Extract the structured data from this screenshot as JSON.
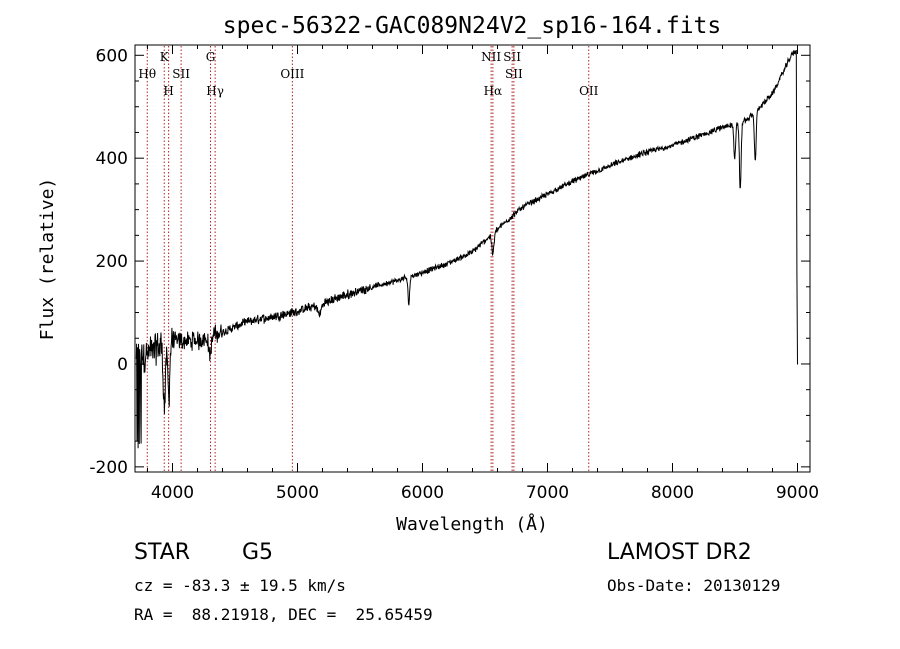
{
  "chart_data": {
    "type": "line",
    "title": "spec-56322-GAC089N24V2_sp16-164.fits",
    "xlabel": "Wavelength (Å)",
    "ylabel": "Flux (relative)",
    "xlim": [
      3700,
      9100
    ],
    "ylim": [
      -210,
      620
    ],
    "x_ticks": [
      4000,
      5000,
      6000,
      7000,
      8000,
      9000
    ],
    "y_ticks": [
      -200,
      0,
      200,
      400,
      600
    ],
    "line_color": "#000000",
    "marker_color": "#b22222",
    "grid": false,
    "continuum_anchors": [
      [
        3700,
        5
      ],
      [
        3800,
        20
      ],
      [
        3900,
        35
      ],
      [
        4000,
        45
      ],
      [
        4200,
        45
      ],
      [
        4400,
        62
      ],
      [
        4600,
        82
      ],
      [
        4800,
        92
      ],
      [
        5000,
        102
      ],
      [
        5200,
        118
      ],
      [
        5400,
        135
      ],
      [
        5600,
        150
      ],
      [
        5800,
        162
      ],
      [
        6000,
        178
      ],
      [
        6200,
        195
      ],
      [
        6400,
        218
      ],
      [
        6600,
        262
      ],
      [
        6800,
        305
      ],
      [
        7000,
        330
      ],
      [
        7200,
        355
      ],
      [
        7400,
        375
      ],
      [
        7600,
        395
      ],
      [
        7800,
        412
      ],
      [
        8000,
        425
      ],
      [
        8200,
        442
      ],
      [
        8400,
        460
      ],
      [
        8600,
        475
      ],
      [
        8800,
        525
      ],
      [
        8950,
        600
      ],
      [
        8990,
        610
      ]
    ],
    "absorption_features": [
      {
        "x": 3935,
        "depth": 120,
        "width": 12
      },
      {
        "x": 3970,
        "depth": 100,
        "width": 12
      },
      {
        "x": 4300,
        "depth": 35,
        "width": 15
      },
      {
        "x": 5175,
        "depth": 20,
        "width": 20
      },
      {
        "x": 5890,
        "depth": 50,
        "width": 10
      },
      {
        "x": 6563,
        "depth": 40,
        "width": 12
      },
      {
        "x": 8498,
        "depth": 70,
        "width": 10
      },
      {
        "x": 8542,
        "depth": 130,
        "width": 10
      },
      {
        "x": 8662,
        "depth": 95,
        "width": 10
      }
    ],
    "line_markers": [
      {
        "label": "Hθ",
        "x": 3798,
        "row": 2
      },
      {
        "label": "K",
        "x": 3934,
        "row": 1
      },
      {
        "label": "H",
        "x": 3969,
        "row": 3
      },
      {
        "label": "SII",
        "x": 4069,
        "row": 2
      },
      {
        "label": "G",
        "x": 4304,
        "row": 1
      },
      {
        "label": "Hγ",
        "x": 4341,
        "row": 3
      },
      {
        "label": "OIII",
        "x": 4959,
        "row": 2
      },
      {
        "label": "NII",
        "x": 6549,
        "row": 1
      },
      {
        "label": "Hα",
        "x": 6563,
        "row": 3
      },
      {
        "label": "SII",
        "x": 6717,
        "row": 1
      },
      {
        "label": "SII",
        "x": 6731,
        "row": 2
      },
      {
        "label": "OII",
        "x": 7330,
        "row": 3
      }
    ]
  },
  "info": {
    "class": "STAR",
    "subclass": "G5",
    "survey": "LAMOST DR2",
    "cz": "cz = -83.3 ± 19.5 km/s",
    "obs_date": "Obs-Date: 20130129",
    "coords": "RA =  88.21918, DEC =  25.65459"
  }
}
